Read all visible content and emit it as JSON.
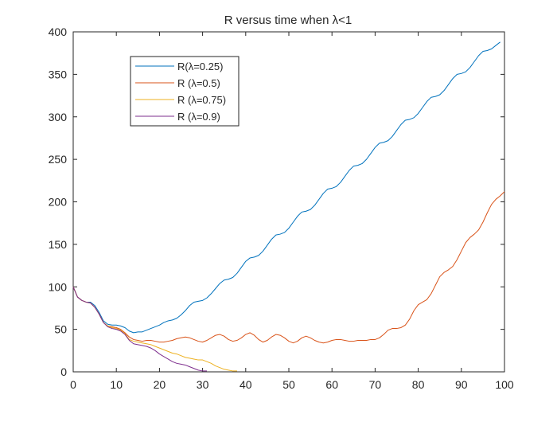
{
  "chart_data": {
    "type": "line",
    "title": "R versus time when λ<1",
    "xlabel": "",
    "ylabel": "",
    "xlim": [
      0,
      100
    ],
    "ylim": [
      0,
      400
    ],
    "xticks": [
      0,
      10,
      20,
      30,
      40,
      50,
      60,
      70,
      80,
      90,
      100
    ],
    "yticks": [
      0,
      50,
      100,
      150,
      200,
      250,
      300,
      350,
      400
    ],
    "grid": false,
    "legend_position": "top-left",
    "series": [
      {
        "name": "R(λ=0.25)",
        "color": "#0072BD",
        "points": [
          [
            0,
            100
          ],
          [
            1,
            88
          ],
          [
            2,
            84
          ],
          [
            3,
            82
          ],
          [
            4,
            82
          ],
          [
            5,
            78
          ],
          [
            6,
            70
          ],
          [
            7,
            60
          ],
          [
            8,
            56
          ],
          [
            9,
            55
          ],
          [
            10,
            55
          ],
          [
            11,
            54
          ],
          [
            12,
            52
          ],
          [
            13,
            48
          ],
          [
            14,
            46
          ],
          [
            15,
            47
          ],
          [
            16,
            47
          ],
          [
            17,
            49
          ],
          [
            18,
            51
          ],
          [
            19,
            53
          ],
          [
            20,
            55
          ],
          [
            21,
            58
          ],
          [
            22,
            60
          ],
          [
            23,
            61
          ],
          [
            24,
            63
          ],
          [
            25,
            67
          ],
          [
            26,
            72
          ],
          [
            27,
            78
          ],
          [
            28,
            82
          ],
          [
            29,
            83
          ],
          [
            30,
            84
          ],
          [
            31,
            87
          ],
          [
            32,
            92
          ],
          [
            33,
            98
          ],
          [
            34,
            104
          ],
          [
            35,
            108
          ],
          [
            36,
            109
          ],
          [
            37,
            111
          ],
          [
            38,
            116
          ],
          [
            39,
            123
          ],
          [
            40,
            130
          ],
          [
            41,
            134
          ],
          [
            42,
            135
          ],
          [
            43,
            137
          ],
          [
            44,
            142
          ],
          [
            45,
            149
          ],
          [
            46,
            156
          ],
          [
            47,
            161
          ],
          [
            48,
            162
          ],
          [
            49,
            164
          ],
          [
            50,
            169
          ],
          [
            51,
            176
          ],
          [
            52,
            183
          ],
          [
            53,
            188
          ],
          [
            54,
            189
          ],
          [
            55,
            191
          ],
          [
            56,
            196
          ],
          [
            57,
            203
          ],
          [
            58,
            210
          ],
          [
            59,
            215
          ],
          [
            60,
            216
          ],
          [
            61,
            218
          ],
          [
            62,
            223
          ],
          [
            63,
            230
          ],
          [
            64,
            237
          ],
          [
            65,
            242
          ],
          [
            66,
            243
          ],
          [
            67,
            245
          ],
          [
            68,
            250
          ],
          [
            69,
            257
          ],
          [
            70,
            264
          ],
          [
            71,
            269
          ],
          [
            72,
            270
          ],
          [
            73,
            272
          ],
          [
            74,
            277
          ],
          [
            75,
            284
          ],
          [
            76,
            291
          ],
          [
            77,
            296
          ],
          [
            78,
            297
          ],
          [
            79,
            299
          ],
          [
            80,
            304
          ],
          [
            81,
            311
          ],
          [
            82,
            318
          ],
          [
            83,
            323
          ],
          [
            84,
            324
          ],
          [
            85,
            326
          ],
          [
            86,
            331
          ],
          [
            87,
            338
          ],
          [
            88,
            345
          ],
          [
            89,
            350
          ],
          [
            90,
            351
          ],
          [
            91,
            353
          ],
          [
            92,
            358
          ],
          [
            93,
            365
          ],
          [
            94,
            372
          ],
          [
            95,
            377
          ],
          [
            96,
            378
          ],
          [
            97,
            380
          ],
          [
            98,
            384
          ],
          [
            99,
            388
          ]
        ]
      },
      {
        "name": "R (λ=0.5)",
        "color": "#D95319",
        "points": [
          [
            0,
            100
          ],
          [
            1,
            88
          ],
          [
            2,
            84
          ],
          [
            3,
            82
          ],
          [
            4,
            81
          ],
          [
            5,
            76
          ],
          [
            6,
            68
          ],
          [
            7,
            58
          ],
          [
            8,
            54
          ],
          [
            9,
            53
          ],
          [
            10,
            52
          ],
          [
            11,
            50
          ],
          [
            12,
            46
          ],
          [
            13,
            41
          ],
          [
            14,
            38
          ],
          [
            15,
            37
          ],
          [
            16,
            36
          ],
          [
            17,
            37
          ],
          [
            18,
            37
          ],
          [
            19,
            36
          ],
          [
            20,
            35
          ],
          [
            21,
            35
          ],
          [
            22,
            36
          ],
          [
            23,
            37
          ],
          [
            24,
            39
          ],
          [
            25,
            40
          ],
          [
            26,
            41
          ],
          [
            27,
            40
          ],
          [
            28,
            38
          ],
          [
            29,
            36
          ],
          [
            30,
            35
          ],
          [
            31,
            37
          ],
          [
            32,
            40
          ],
          [
            33,
            43
          ],
          [
            34,
            44
          ],
          [
            35,
            42
          ],
          [
            36,
            38
          ],
          [
            37,
            36
          ],
          [
            38,
            37
          ],
          [
            39,
            40
          ],
          [
            40,
            44
          ],
          [
            41,
            46
          ],
          [
            42,
            43
          ],
          [
            43,
            38
          ],
          [
            44,
            35
          ],
          [
            45,
            37
          ],
          [
            46,
            41
          ],
          [
            47,
            44
          ],
          [
            48,
            43
          ],
          [
            49,
            40
          ],
          [
            50,
            36
          ],
          [
            51,
            34
          ],
          [
            52,
            36
          ],
          [
            53,
            40
          ],
          [
            54,
            42
          ],
          [
            55,
            40
          ],
          [
            56,
            37
          ],
          [
            57,
            35
          ],
          [
            58,
            34
          ],
          [
            59,
            35
          ],
          [
            60,
            37
          ],
          [
            61,
            38
          ],
          [
            62,
            38
          ],
          [
            63,
            37
          ],
          [
            64,
            36
          ],
          [
            65,
            36
          ],
          [
            66,
            37
          ],
          [
            67,
            37
          ],
          [
            68,
            37
          ],
          [
            69,
            38
          ],
          [
            70,
            38
          ],
          [
            71,
            40
          ],
          [
            72,
            44
          ],
          [
            73,
            49
          ],
          [
            74,
            51
          ],
          [
            75,
            51
          ],
          [
            76,
            52
          ],
          [
            77,
            55
          ],
          [
            78,
            62
          ],
          [
            79,
            72
          ],
          [
            80,
            79
          ],
          [
            81,
            82
          ],
          [
            82,
            85
          ],
          [
            83,
            92
          ],
          [
            84,
            102
          ],
          [
            85,
            112
          ],
          [
            86,
            117
          ],
          [
            87,
            120
          ],
          [
            88,
            124
          ],
          [
            89,
            132
          ],
          [
            90,
            142
          ],
          [
            91,
            152
          ],
          [
            92,
            158
          ],
          [
            93,
            162
          ],
          [
            94,
            167
          ],
          [
            95,
            176
          ],
          [
            96,
            187
          ],
          [
            97,
            197
          ],
          [
            98,
            203
          ],
          [
            99,
            207
          ],
          [
            100,
            212
          ]
        ]
      },
      {
        "name": "R (λ=0.75)",
        "color": "#EDB120",
        "points": [
          [
            0,
            100
          ],
          [
            1,
            88
          ],
          [
            2,
            84
          ],
          [
            3,
            82
          ],
          [
            4,
            81
          ],
          [
            5,
            76
          ],
          [
            6,
            68
          ],
          [
            7,
            58
          ],
          [
            8,
            54
          ],
          [
            9,
            52
          ],
          [
            10,
            51
          ],
          [
            11,
            49
          ],
          [
            12,
            45
          ],
          [
            13,
            38
          ],
          [
            14,
            36
          ],
          [
            15,
            35
          ],
          [
            16,
            34
          ],
          [
            17,
            33
          ],
          [
            18,
            32
          ],
          [
            19,
            30
          ],
          [
            20,
            28
          ],
          [
            21,
            26
          ],
          [
            22,
            24
          ],
          [
            23,
            22
          ],
          [
            24,
            21
          ],
          [
            25,
            19
          ],
          [
            26,
            17
          ],
          [
            27,
            16
          ],
          [
            28,
            15
          ],
          [
            29,
            14
          ],
          [
            30,
            14
          ],
          [
            31,
            12
          ],
          [
            32,
            10
          ],
          [
            33,
            7
          ],
          [
            34,
            5
          ],
          [
            35,
            3
          ],
          [
            36,
            2
          ],
          [
            37,
            1
          ],
          [
            38,
            1
          ]
        ]
      },
      {
        "name": "R (λ=0.9)",
        "color": "#7E2F8E",
        "points": [
          [
            0,
            100
          ],
          [
            1,
            88
          ],
          [
            2,
            84
          ],
          [
            3,
            82
          ],
          [
            4,
            81
          ],
          [
            5,
            76
          ],
          [
            6,
            68
          ],
          [
            7,
            58
          ],
          [
            8,
            53
          ],
          [
            9,
            51
          ],
          [
            10,
            50
          ],
          [
            11,
            48
          ],
          [
            12,
            44
          ],
          [
            13,
            37
          ],
          [
            14,
            33
          ],
          [
            15,
            32
          ],
          [
            16,
            31
          ],
          [
            17,
            30
          ],
          [
            18,
            28
          ],
          [
            19,
            25
          ],
          [
            20,
            21
          ],
          [
            21,
            18
          ],
          [
            22,
            15
          ],
          [
            23,
            12
          ],
          [
            24,
            10
          ],
          [
            25,
            9
          ],
          [
            26,
            8
          ],
          [
            27,
            6
          ],
          [
            28,
            4
          ],
          [
            29,
            2
          ],
          [
            30,
            1
          ],
          [
            31,
            1
          ]
        ]
      }
    ]
  }
}
